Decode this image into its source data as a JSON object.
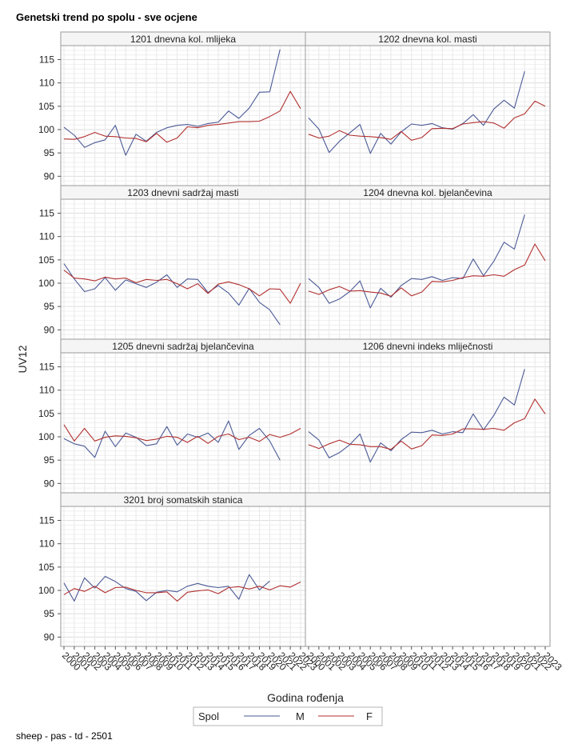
{
  "title": "Genetski trend po spolu - sve ocjene",
  "footnote": "sheep - pas - td - 2501",
  "colors": {
    "M": "#4b5a96",
    "F": "#b2302f",
    "grid": "#e6e6e6",
    "frame": "#9a9a9a",
    "header": "#f5f5f5"
  },
  "chart_data": {
    "type": "line",
    "ylabel": "UV12",
    "xlabel": "Godina rođenja",
    "ylim": [
      88,
      118
    ],
    "yticks": [
      90,
      95,
      100,
      105,
      110,
      115
    ],
    "x": [
      "2000",
      "2001",
      "2002",
      "2003",
      "2004",
      "2005",
      "2006",
      "2007",
      "2008",
      "2009",
      "2010",
      "2011",
      "2012",
      "2013",
      "2014",
      "2015",
      "2016",
      "2017",
      "2018",
      "2019",
      "2020",
      "2021",
      "2022",
      "2023"
    ],
    "legend": {
      "title": "Spol",
      "entries": [
        "M",
        "F"
      ],
      "position": "bottom"
    },
    "panels": [
      {
        "title": "1201 dnevna kol. mlijeka",
        "series": [
          {
            "name": "M",
            "values": [
              100.5,
              98.8,
              96.2,
              97.2,
              97.8,
              100.9,
              94.5,
              99.0,
              97.5,
              99.4,
              100.4,
              100.9,
              101.1,
              100.7,
              101.3,
              101.6,
              104.0,
              102.4,
              104.6,
              108.0,
              108.1,
              117.2,
              null,
              null
            ]
          },
          {
            "name": "F",
            "values": [
              98.0,
              97.9,
              98.5,
              99.4,
              98.6,
              98.5,
              98.2,
              98.1,
              97.4,
              99.2,
              97.3,
              98.2,
              100.6,
              100.4,
              100.9,
              101.1,
              101.4,
              101.7,
              101.7,
              101.8,
              102.8,
              104.0,
              108.2,
              104.5
            ]
          }
        ]
      },
      {
        "title": "1202 dnevna kol. masti",
        "series": [
          {
            "name": "M",
            "values": [
              102.5,
              100.1,
              95.1,
              97.5,
              99.3,
              101.1,
              94.9,
              99.2,
              96.9,
              99.5,
              101.2,
              100.9,
              101.3,
              100.4,
              100.1,
              101.3,
              103.2,
              100.9,
              104.4,
              106.3,
              104.6,
              112.5,
              null,
              null
            ]
          },
          {
            "name": "F",
            "values": [
              99.0,
              98.2,
              98.6,
              99.8,
              98.8,
              98.6,
              98.5,
              98.3,
              97.9,
              99.6,
              97.7,
              98.3,
              100.2,
              100.3,
              100.2,
              101.2,
              101.5,
              101.7,
              101.4,
              100.3,
              102.5,
              103.4,
              106.1,
              105.0
            ]
          }
        ]
      },
      {
        "title": "1203 dnevni sadržaj masti",
        "series": [
          {
            "name": "M",
            "values": [
              104.2,
              100.9,
              98.2,
              98.8,
              101.2,
              98.5,
              100.7,
              99.9,
              99.1,
              100.2,
              101.8,
              99.1,
              100.9,
              100.8,
              98.0,
              99.5,
              97.9,
              95.3,
              98.9,
              95.9,
              94.3,
              91.1,
              null,
              null
            ]
          },
          {
            "name": "F",
            "values": [
              102.8,
              101.1,
              100.9,
              100.5,
              101.3,
              100.9,
              101.1,
              100.1,
              100.8,
              100.6,
              100.8,
              99.9,
              98.8,
              99.9,
              97.8,
              99.8,
              100.3,
              99.7,
              98.8,
              97.3,
              98.8,
              98.7,
              95.7,
              100.0
            ]
          }
        ]
      },
      {
        "title": "1204 dnevna kol. bjelančevina",
        "series": [
          {
            "name": "M",
            "values": [
              101.0,
              99.1,
              95.7,
              96.6,
              98.2,
              100.5,
              94.7,
              98.9,
              97.0,
              99.5,
              101.0,
              100.8,
              101.4,
              100.6,
              101.2,
              101.0,
              105.2,
              101.6,
              104.7,
              108.8,
              107.3,
              114.7,
              null,
              null
            ]
          },
          {
            "name": "F",
            "values": [
              98.3,
              97.6,
              98.6,
              99.3,
              98.3,
              98.4,
              98.1,
              97.9,
              97.2,
              99.0,
              97.3,
              98.1,
              100.4,
              100.3,
              100.6,
              101.2,
              101.6,
              101.5,
              101.8,
              101.5,
              102.9,
              103.9,
              108.4,
              104.8
            ]
          }
        ]
      },
      {
        "title": "1205 dnevni sadržaj bjelančevina",
        "series": [
          {
            "name": "M",
            "values": [
              99.6,
              98.5,
              98.0,
              95.6,
              101.2,
              97.9,
              100.8,
              99.9,
              98.1,
              98.5,
              102.2,
              98.2,
              100.6,
              99.9,
              100.8,
              98.8,
              103.4,
              97.3,
              100.3,
              101.8,
              99.1,
              95.0,
              null,
              null
            ]
          },
          {
            "name": "F",
            "values": [
              102.6,
              99.1,
              101.8,
              99.1,
              99.9,
              100.2,
              100.1,
              99.8,
              99.2,
              99.5,
              100.1,
              99.9,
              98.8,
              100.1,
              98.6,
              100.1,
              100.6,
              99.4,
              99.9,
              99.0,
              100.5,
              99.9,
              100.6,
              101.8
            ]
          }
        ]
      },
      {
        "title": "1206 dnevni indeks mliječnosti",
        "series": [
          {
            "name": "M",
            "values": [
              101.1,
              99.3,
              95.5,
              96.6,
              98.3,
              100.6,
              94.6,
              98.7,
              97.0,
              99.4,
              101.0,
              100.9,
              101.4,
              100.6,
              101.1,
              100.9,
              104.9,
              101.5,
              104.6,
              108.5,
              106.8,
              114.5,
              null,
              null
            ]
          },
          {
            "name": "F",
            "values": [
              98.3,
              97.5,
              98.5,
              99.3,
              98.4,
              98.3,
              97.9,
              97.9,
              97.3,
              99.1,
              97.4,
              98.1,
              100.4,
              100.3,
              100.6,
              101.7,
              101.7,
              101.6,
              101.8,
              101.4,
              103.0,
              103.9,
              108.1,
              104.9
            ]
          }
        ]
      },
      {
        "title": "3201 broj somatskih stanica",
        "series": [
          {
            "name": "M",
            "values": [
              101.6,
              97.7,
              102.7,
              100.5,
              103.0,
              101.9,
              100.4,
              99.8,
              97.8,
              99.6,
              100.0,
              99.7,
              100.9,
              101.5,
              100.9,
              100.6,
              100.9,
              98.1,
              103.4,
              100.1,
              102.0,
              null,
              null,
              null
            ]
          },
          {
            "name": "F",
            "values": [
              99.1,
              100.4,
              99.8,
              100.9,
              99.5,
              100.6,
              100.7,
              100.0,
              99.5,
              99.5,
              99.7,
              97.7,
              99.6,
              99.9,
              100.1,
              99.3,
              100.6,
              100.8,
              100.3,
              100.9,
              100.1,
              101.0,
              100.7,
              101.8
            ]
          }
        ]
      },
      {
        "title": "",
        "series": []
      }
    ]
  }
}
